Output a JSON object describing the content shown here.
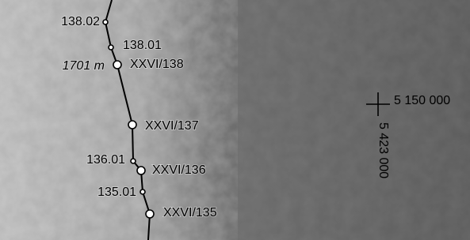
{
  "map": {
    "route_points": [
      {
        "label": "138.02"
      },
      {
        "label": "138.01"
      },
      {
        "label": "XXVI/138",
        "elevation": "1701 m"
      },
      {
        "label": "XXVI/137"
      },
      {
        "label": "136.01"
      },
      {
        "label": "XXVI/136"
      },
      {
        "label": "135.01"
      },
      {
        "label": "XXVI/135"
      }
    ],
    "grid_cross": {
      "easting": "5 150 000",
      "northing": "5 423 000"
    }
  }
}
